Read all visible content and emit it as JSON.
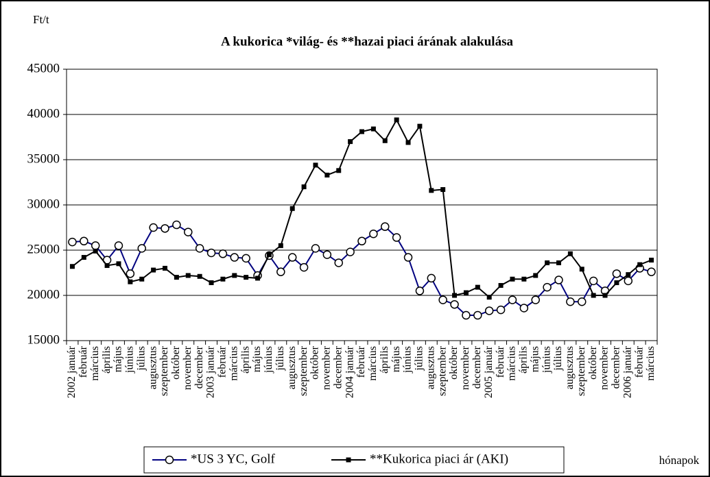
{
  "chart_data": {
    "type": "line",
    "title": "A kukorica *világ- és **hazai piaci árának alakulása",
    "y_label": "Ft/t",
    "x_label": "hónapok",
    "categories": [
      "2002 január",
      "február",
      "március",
      "április",
      "május",
      "június",
      "július",
      "augusztus",
      "szeptember",
      "október",
      "november",
      "december",
      "2003 január",
      "február",
      "március",
      "április",
      "május",
      "június",
      "július",
      "augusztus",
      "szeptember",
      "október",
      "november",
      "december",
      "2004 január",
      "február",
      "március",
      "április",
      "május",
      "június",
      "július",
      "augusztus",
      "szeptember",
      "október",
      "november",
      "december",
      "2005 január",
      "február",
      "március",
      "április",
      "május",
      "június",
      "július",
      "augusztus",
      "szeptember",
      "október",
      "november",
      "december",
      "2006 január",
      "február",
      "március"
    ],
    "series": [
      {
        "name": "*US 3 YC, Golf",
        "color": "#000080",
        "marker": "circle",
        "values": [
          25900,
          26000,
          25500,
          23900,
          25500,
          22400,
          25200,
          27500,
          27400,
          27800,
          27000,
          25200,
          24700,
          24600,
          24200,
          24100,
          22200,
          24400,
          22600,
          24200,
          23100,
          25200,
          24500,
          23600,
          24800,
          26000,
          26800,
          27600,
          26400,
          24200,
          20500,
          21900,
          19500,
          19000,
          17800,
          17800,
          18300,
          18400,
          19500,
          18600,
          19500,
          20900,
          21700,
          19300,
          19300,
          21600,
          20500,
          22400,
          21600,
          23000,
          22600
        ]
      },
      {
        "name": "**Kukorica piaci ár (AKI)",
        "color": "#000000",
        "marker": "square",
        "values": [
          23200,
          24200,
          24900,
          23300,
          23500,
          21500,
          21800,
          22800,
          23000,
          22000,
          22200,
          22100,
          21400,
          21800,
          22200,
          22000,
          21900,
          24500,
          25500,
          29600,
          32000,
          34400,
          33300,
          33800,
          37000,
          38100,
          38400,
          37100,
          39400,
          36900,
          38700,
          31600,
          31700,
          20000,
          20300,
          20900,
          19800,
          21100,
          21800,
          21800,
          22200,
          23600,
          23600,
          24600,
          22900,
          20000,
          20000,
          21400,
          22300,
          23400,
          23900
        ]
      }
    ],
    "ylim": [
      15000,
      45000
    ],
    "yticks": [
      15000,
      20000,
      25000,
      30000,
      35000,
      40000,
      45000
    ],
    "grid": true,
    "legend": "bottom"
  }
}
